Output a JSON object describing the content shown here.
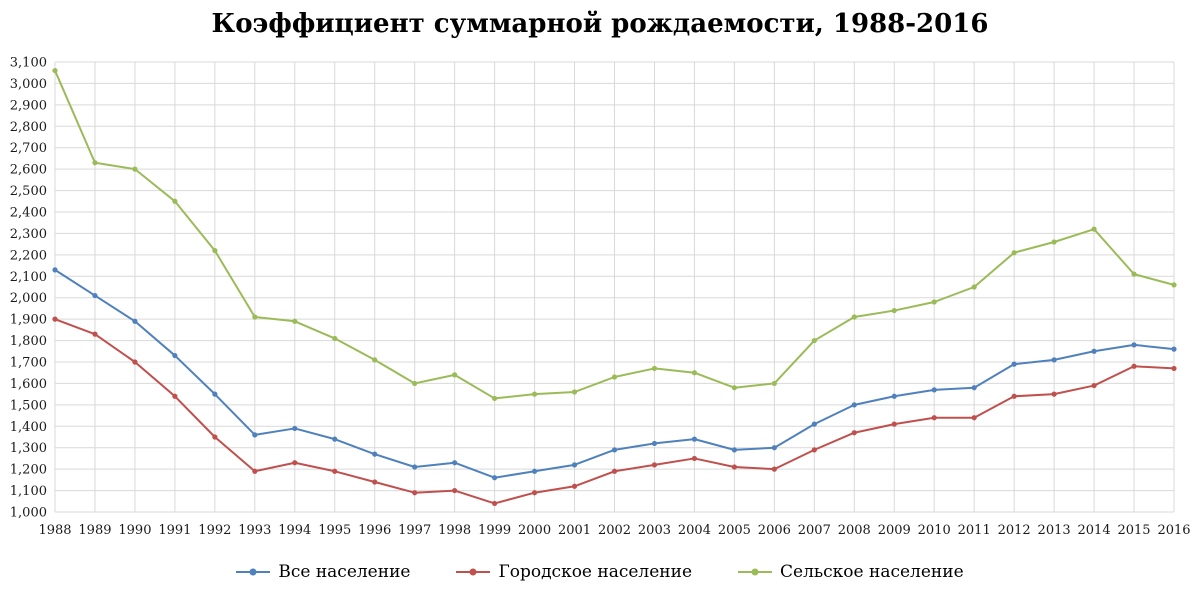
{
  "title": "Коэффициент суммарной рождаемости, 1988-2016",
  "colors": {
    "grid": "#d9d9d9",
    "background": "#ffffff",
    "tick_text": "#1a1a1a"
  },
  "chart_data": {
    "type": "line",
    "title": "Коэффициент суммарной рождаемости, 1988-2016",
    "x": [
      1988,
      1989,
      1990,
      1991,
      1992,
      1993,
      1994,
      1995,
      1996,
      1997,
      1998,
      1999,
      2000,
      2001,
      2002,
      2003,
      2004,
      2005,
      2006,
      2007,
      2008,
      2009,
      2010,
      2011,
      2012,
      2013,
      2014,
      2015,
      2016
    ],
    "yticks": [
      "1,000",
      "1,100",
      "1,200",
      "1,300",
      "1,400",
      "1,500",
      "1,600",
      "1,700",
      "1,800",
      "1,900",
      "2,000",
      "2,100",
      "2,200",
      "2,300",
      "2,400",
      "2,500",
      "2,600",
      "2,700",
      "2,800",
      "2,900",
      "3,000",
      "3,100"
    ],
    "ylim": [
      1.0,
      3.1
    ],
    "ytick_step": 0.1,
    "grid": true,
    "marker": "circle",
    "legend_position": "bottom",
    "series": [
      {
        "name": "Все население",
        "color": "#4f81bd",
        "values": [
          2.13,
          2.01,
          1.89,
          1.73,
          1.55,
          1.36,
          1.39,
          1.34,
          1.27,
          1.21,
          1.23,
          1.16,
          1.19,
          1.22,
          1.29,
          1.32,
          1.34,
          1.29,
          1.3,
          1.41,
          1.5,
          1.54,
          1.57,
          1.58,
          1.69,
          1.71,
          1.75,
          1.78,
          1.76
        ]
      },
      {
        "name": "Городское население",
        "color": "#c0504d",
        "values": [
          1.9,
          1.83,
          1.7,
          1.54,
          1.35,
          1.19,
          1.23,
          1.19,
          1.14,
          1.09,
          1.1,
          1.04,
          1.09,
          1.12,
          1.19,
          1.22,
          1.25,
          1.21,
          1.2,
          1.29,
          1.37,
          1.41,
          1.44,
          1.44,
          1.54,
          1.55,
          1.59,
          1.68,
          1.67
        ]
      },
      {
        "name": "Сельское население",
        "color": "#9bbb59",
        "values": [
          3.06,
          2.63,
          2.6,
          2.45,
          2.22,
          1.91,
          1.89,
          1.81,
          1.71,
          1.6,
          1.64,
          1.53,
          1.55,
          1.56,
          1.63,
          1.67,
          1.65,
          1.58,
          1.6,
          1.8,
          1.91,
          1.94,
          1.98,
          2.05,
          2.21,
          2.26,
          2.32,
          2.11,
          2.06
        ]
      }
    ]
  }
}
